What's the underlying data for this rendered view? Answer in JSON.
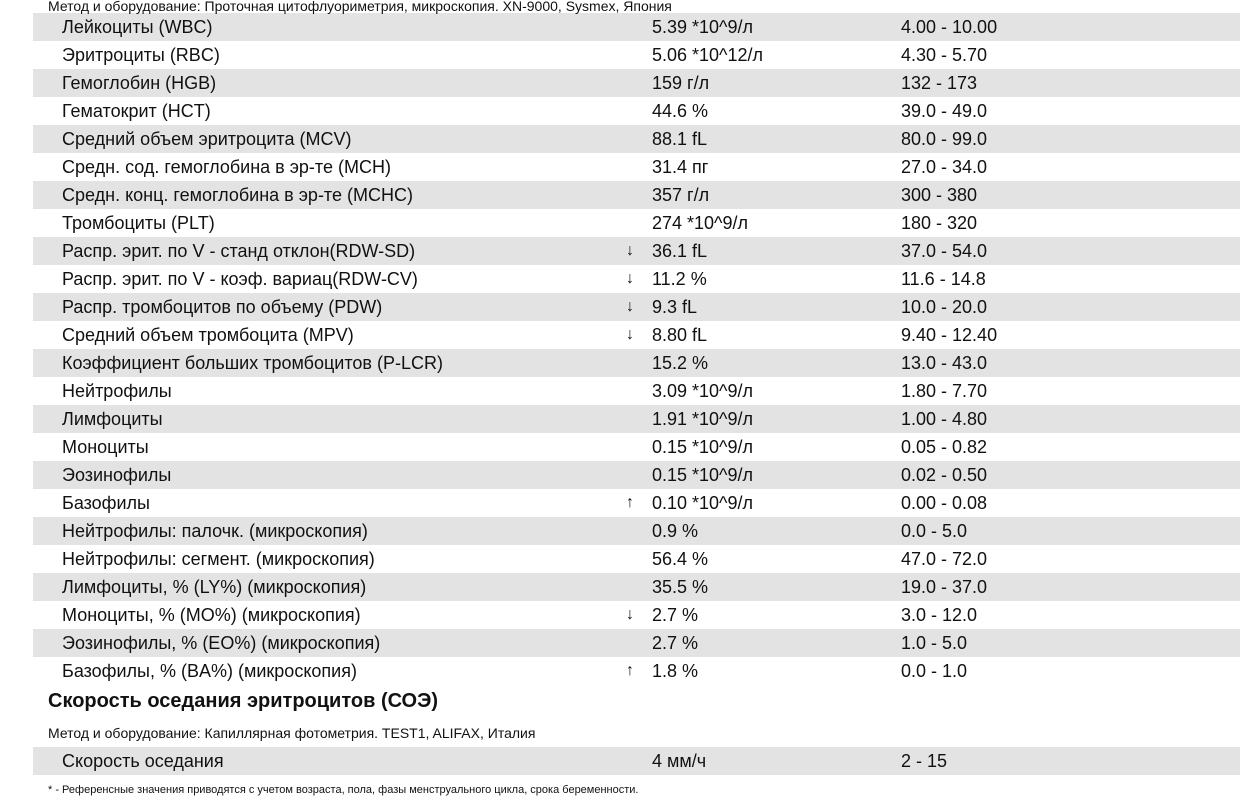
{
  "top_method": "Метод и оборудование:  Проточная цитофлуориметрия, микроскопия. XN-9000, Sysmex, Япония",
  "rows": [
    {
      "name": "Лейкоциты (WBC)",
      "flag": "",
      "value": "5.39 *10^9/л",
      "ref": "4.00 - 10.00"
    },
    {
      "name": "Эритроциты (RBC)",
      "flag": "",
      "value": "5.06 *10^12/л",
      "ref": "4.30 - 5.70"
    },
    {
      "name": "Гемоглобин (HGB)",
      "flag": "",
      "value": "159 г/л",
      "ref": "132 - 173"
    },
    {
      "name": "Гематокрит (HCT)",
      "flag": "",
      "value": "44.6 %",
      "ref": "39.0 - 49.0"
    },
    {
      "name": "Средний объем эритроцита (MCV)",
      "flag": "",
      "value": "88.1 fL",
      "ref": "80.0 - 99.0"
    },
    {
      "name": "Средн. сод. гемоглобина в эр-те (MCH)",
      "flag": "",
      "value": "31.4 пг",
      "ref": "27.0 - 34.0"
    },
    {
      "name": "Средн. конц. гемоглобина в эр-те (MCHC)",
      "flag": "",
      "value": "357 г/л",
      "ref": "300 - 380"
    },
    {
      "name": "Тромбоциты (PLT)",
      "flag": "",
      "value": "274 *10^9/л",
      "ref": "180 - 320"
    },
    {
      "name": "Распр. эрит. по V - станд отклон(RDW-SD)",
      "flag": "↓",
      "value": "36.1 fL",
      "ref": "37.0 - 54.0"
    },
    {
      "name": "Распр. эрит. по V - коэф. вариац(RDW-CV)",
      "flag": "↓",
      "value": "11.2 %",
      "ref": "11.6 - 14.8"
    },
    {
      "name": "Распр. тромбоцитов по объему (PDW)",
      "flag": "↓",
      "value": "9.3 fL",
      "ref": "10.0 - 20.0"
    },
    {
      "name": "Средний объем тромбоцита (MPV)",
      "flag": "↓",
      "value": "8.80 fL",
      "ref": "9.40 - 12.40"
    },
    {
      "name": "Коэффициент больших тромбоцитов (P-LCR)",
      "flag": "",
      "value": "15.2 %",
      "ref": "13.0 - 43.0"
    },
    {
      "name": "Нейтрофилы",
      "flag": "",
      "value": "3.09 *10^9/л",
      "ref": "1.80 - 7.70"
    },
    {
      "name": "Лимфоциты",
      "flag": "",
      "value": "1.91 *10^9/л",
      "ref": "1.00 - 4.80"
    },
    {
      "name": "Моноциты",
      "flag": "",
      "value": "0.15 *10^9/л",
      "ref": "0.05 - 0.82"
    },
    {
      "name": "Эозинофилы",
      "flag": "",
      "value": "0.15 *10^9/л",
      "ref": "0.02 - 0.50"
    },
    {
      "name": "Базофилы",
      "flag": "↑",
      "value": "0.10 *10^9/л",
      "ref": "0.00 - 0.08"
    },
    {
      "name": "Нейтрофилы: палочк. (микроскопия)",
      "flag": "",
      "value": "0.9 %",
      "ref": "0.0 - 5.0"
    },
    {
      "name": "Нейтрофилы: сегмент. (микроскопия)",
      "flag": "",
      "value": "56.4 %",
      "ref": "47.0 - 72.0"
    },
    {
      "name": "Лимфоциты, % (LY%) (микроскопия)",
      "flag": "",
      "value": "35.5 %",
      "ref": "19.0 - 37.0"
    },
    {
      "name": "Моноциты, % (MO%) (микроскопия)",
      "flag": "↓",
      "value": "2.7 %",
      "ref": "3.0 - 12.0"
    },
    {
      "name": "Эозинофилы, % (EO%) (микроскопия)",
      "flag": "",
      "value": "2.7 %",
      "ref": "1.0 - 5.0"
    },
    {
      "name": "Базофилы, % (BA%) (микроскопия)",
      "flag": "↑",
      "value": "1.8 %",
      "ref": "0.0 - 1.0"
    }
  ],
  "esr": {
    "title": "Скорость оседания эритроцитов (СОЭ)",
    "method": "Метод и оборудование:  Капиллярная фотометрия. TEST1, ALIFAX, Италия",
    "row": {
      "name": "Скорость оседания",
      "value": "4 мм/ч",
      "ref": "2 - 15"
    }
  },
  "footnote": "* - Референсные значения приводятся с учетом возраста, пола, фазы менструального цикла, срока беременности."
}
